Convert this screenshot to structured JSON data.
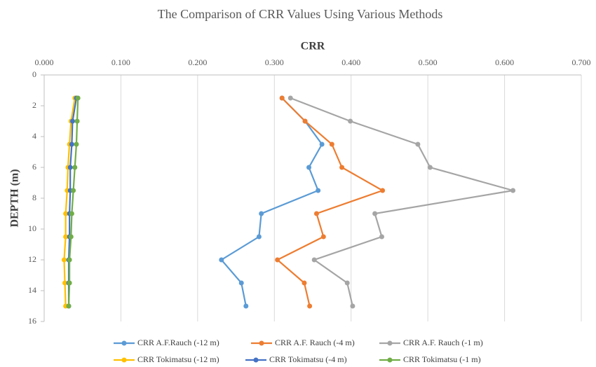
{
  "chart_data": {
    "type": "line",
    "title": "The Comparison of CRR Values Using Various Methods",
    "x_label": "CRR",
    "y_label": "DEPTH (m)",
    "x_axis_position": "top",
    "y_inverted": true,
    "grid": true,
    "legend": "bottom",
    "y": [
      1.5,
      3,
      4.5,
      6,
      7.5,
      9,
      10.5,
      12,
      13.5,
      15
    ],
    "series": [
      {
        "name": "CRR A.F.Rauch (-12 m)",
        "color": "#5b9bd5",
        "values": [
          0.31,
          0.34,
          0.362,
          0.345,
          0.357,
          0.283,
          0.28,
          0.231,
          0.257,
          0.263
        ]
      },
      {
        "name": "CRR A.F. Rauch (-4 m)",
        "color": "#ed7d31",
        "values": [
          0.31,
          0.34,
          0.375,
          0.388,
          0.441,
          0.355,
          0.364,
          0.304,
          0.339,
          0.346
        ]
      },
      {
        "name": "CRR A.F. Rauch (-1 m)",
        "color": "#a5a5a5",
        "values": [
          0.321,
          0.399,
          0.487,
          0.503,
          0.611,
          0.431,
          0.44,
          0.352,
          0.395,
          0.402
        ]
      },
      {
        "name": "CRR Tokimatsu (-12 m)",
        "color": "#ffc000",
        "values": [
          0.04,
          0.035,
          0.033,
          0.031,
          0.03,
          0.028,
          0.028,
          0.026,
          0.027,
          0.028
        ]
      },
      {
        "name": "CRR Tokimatsu (-4 m)",
        "color": "#4472c4",
        "values": [
          0.042,
          0.037,
          0.036,
          0.034,
          0.034,
          0.033,
          0.033,
          0.032,
          0.032,
          0.032
        ]
      },
      {
        "name": "CRR Tokimatsu (-1 m)",
        "color": "#70ad47",
        "values": [
          0.044,
          0.043,
          0.042,
          0.04,
          0.038,
          0.036,
          0.035,
          0.033,
          0.033,
          0.032
        ]
      }
    ],
    "xlim": [
      0,
      0.7
    ],
    "xticks": [
      {
        "value": 0,
        "label": "0.000"
      },
      {
        "value": 0.1,
        "label": "0.100"
      },
      {
        "value": 0.2,
        "label": "0.200"
      },
      {
        "value": 0.3,
        "label": "0.300"
      },
      {
        "value": 0.4,
        "label": "0.400"
      },
      {
        "value": 0.5,
        "label": "0.500"
      },
      {
        "value": 0.6,
        "label": "0.600"
      },
      {
        "value": 0.7,
        "label": "0.700"
      }
    ],
    "ylim": [
      0,
      16
    ],
    "yticks": [
      0,
      2,
      4,
      6,
      8,
      10,
      12,
      14,
      16
    ]
  }
}
